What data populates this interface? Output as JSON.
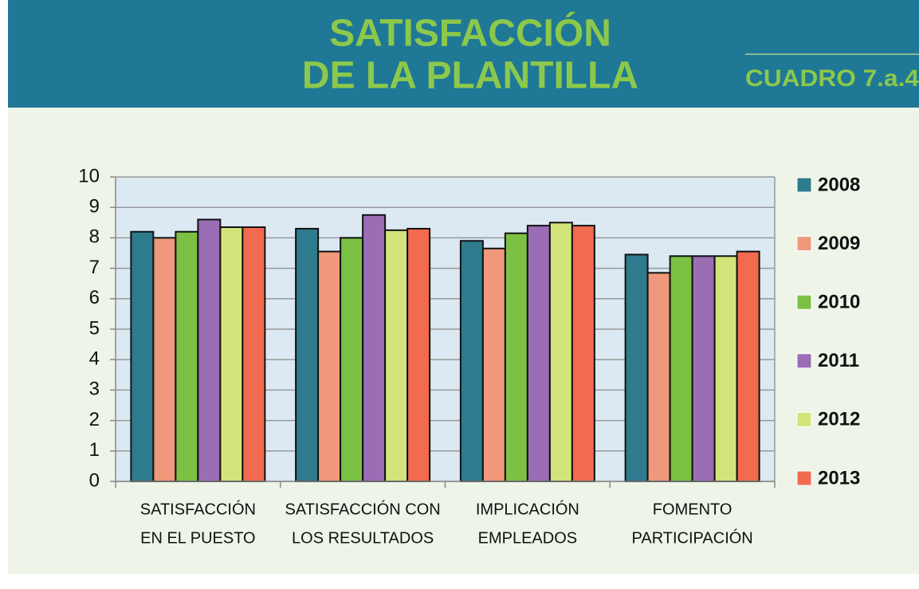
{
  "header": {
    "title_lines": [
      "SATISFACCIÓN",
      "DE LA PLANTILLA"
    ],
    "code": "CUADRO 7.a.4"
  },
  "chart_data": {
    "type": "bar",
    "categories": [
      [
        "SATISFACCIÓN",
        "EN EL PUESTO"
      ],
      [
        "SATISFACCIÓN CON",
        "LOS RESULTADOS"
      ],
      [
        "IMPLICACIÓN",
        "EMPLEADOS"
      ],
      [
        "FOMENTO",
        "PARTICIPACIÓN"
      ]
    ],
    "series": [
      {
        "name": "2008",
        "color": "#2e7b8e",
        "values": [
          8.2,
          8.3,
          7.9,
          7.45
        ]
      },
      {
        "name": "2009",
        "color": "#f0987b",
        "values": [
          8.0,
          7.55,
          7.65,
          6.85
        ]
      },
      {
        "name": "2010",
        "color": "#7cc143",
        "values": [
          8.2,
          8.0,
          8.15,
          7.4
        ]
      },
      {
        "name": "2011",
        "color": "#9a6db5",
        "values": [
          8.6,
          8.75,
          8.4,
          7.4
        ]
      },
      {
        "name": "2012",
        "color": "#d3e47b",
        "values": [
          8.35,
          8.25,
          8.5,
          7.4
        ]
      },
      {
        "name": "2013",
        "color": "#f26a4f",
        "values": [
          8.35,
          8.3,
          8.4,
          7.55
        ]
      }
    ],
    "ylim": [
      0,
      10
    ],
    "yticks": [
      0,
      1,
      2,
      3,
      4,
      5,
      6,
      7,
      8,
      9,
      10
    ],
    "grid": true,
    "legend": "right"
  }
}
